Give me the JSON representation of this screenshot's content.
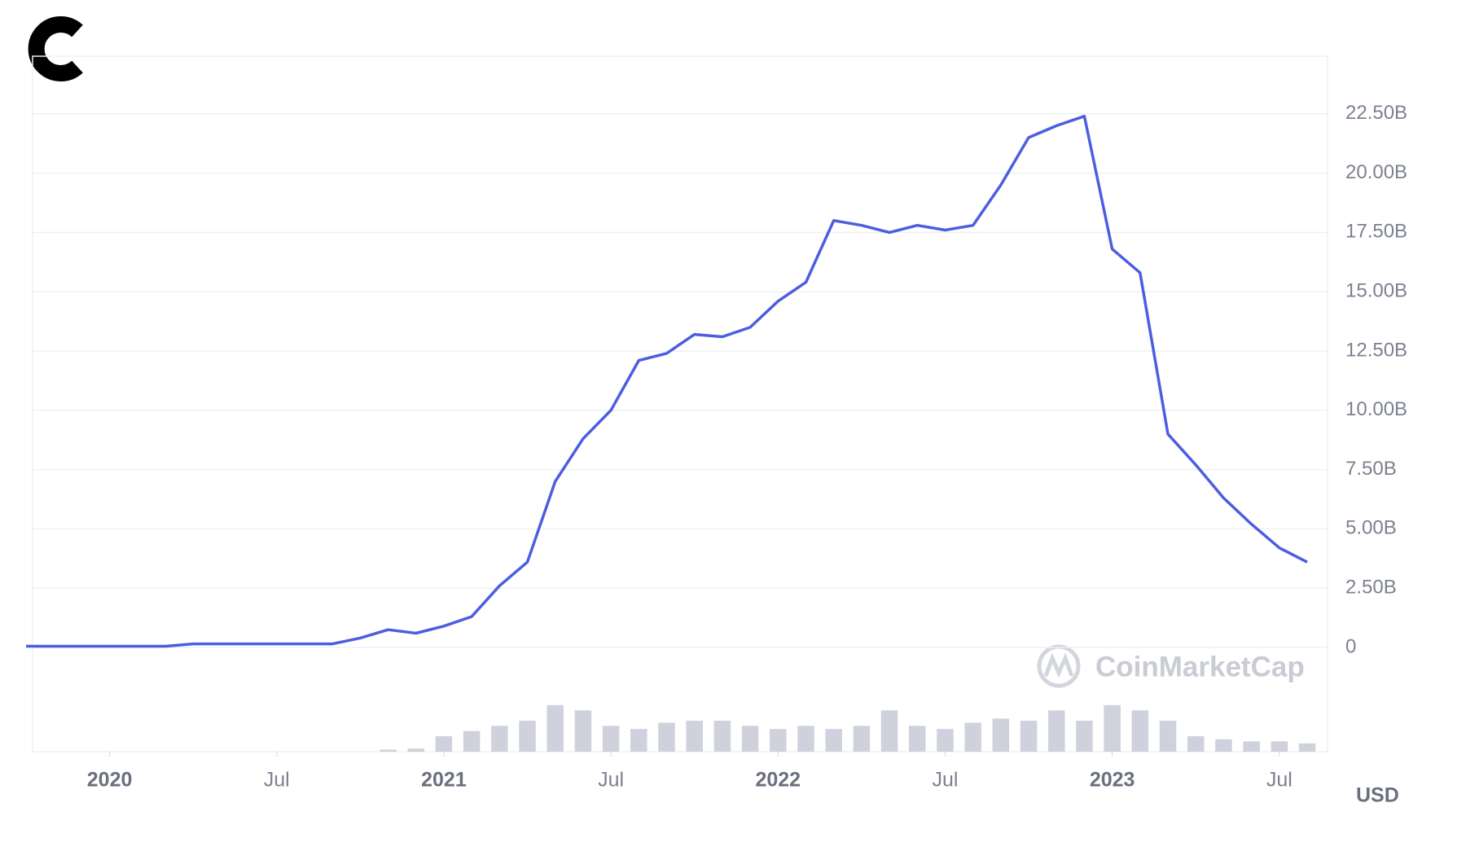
{
  "chart_data": {
    "type": "line",
    "y_label": "USD",
    "watermark": "CoinMarketCap",
    "x": [
      "2019-10",
      "2019-11",
      "2019-12",
      "2020-01",
      "2020-02",
      "2020-03",
      "2020-04",
      "2020-05",
      "2020-06",
      "2020-07",
      "2020-08",
      "2020-09",
      "2020-10",
      "2020-11",
      "2020-12",
      "2021-01",
      "2021-02",
      "2021-03",
      "2021-04",
      "2021-05",
      "2021-06",
      "2021-07",
      "2021-08",
      "2021-09",
      "2021-10",
      "2021-11",
      "2021-12",
      "2022-01",
      "2022-02",
      "2022-03",
      "2022-04",
      "2022-05",
      "2022-06",
      "2022-07",
      "2022-08",
      "2022-09",
      "2022-10",
      "2022-11",
      "2022-12",
      "2023-01",
      "2023-02",
      "2023-03",
      "2023-04",
      "2023-05",
      "2023-06",
      "2023-07",
      "2023-08"
    ],
    "values": [
      0.05,
      0.05,
      0.05,
      0.05,
      0.05,
      0.05,
      0.15,
      0.15,
      0.15,
      0.15,
      0.15,
      0.15,
      0.4,
      0.75,
      0.6,
      0.9,
      1.3,
      2.6,
      3.6,
      7.0,
      8.8,
      10.0,
      12.1,
      12.4,
      13.2,
      13.1,
      13.5,
      14.6,
      15.4,
      18.0,
      17.8,
      17.5,
      17.8,
      17.6,
      17.8,
      19.5,
      21.5,
      22.0,
      22.4,
      16.8,
      15.8,
      9.0,
      7.7,
      6.3,
      5.2,
      4.2,
      3.6
    ],
    "color": "#4c5ee0",
    "volume_values": [
      0,
      0,
      0,
      0,
      0,
      0,
      0,
      0,
      0,
      0,
      0,
      0,
      0,
      2,
      3,
      15,
      20,
      25,
      30,
      45,
      40,
      25,
      22,
      28,
      30,
      30,
      25,
      22,
      25,
      22,
      25,
      40,
      25,
      22,
      28,
      32,
      30,
      40,
      30,
      45,
      40,
      30,
      15,
      12,
      10,
      10,
      8
    ],
    "volume_color": "#cfd2dc",
    "y2lim": [
      0,
      100
    ],
    "xlim": [
      "2019-10",
      "2023-08"
    ],
    "xticks": [
      {
        "value": "2020-01",
        "label": "2020"
      },
      {
        "value": "2020-07",
        "label": "Jul"
      },
      {
        "value": "2021-01",
        "label": "2021"
      },
      {
        "value": "2021-07",
        "label": "Jul"
      },
      {
        "value": "2022-01",
        "label": "2022"
      },
      {
        "value": "2022-07",
        "label": "Jul"
      },
      {
        "value": "2023-01",
        "label": "2023"
      },
      {
        "value": "2023-07",
        "label": "Jul"
      }
    ],
    "ylim": [
      0,
      25
    ],
    "yticks": [
      0,
      {
        "value": 2.5,
        "label": "2.50B"
      },
      {
        "value": 5,
        "label": "5.00B"
      },
      {
        "value": 7.5,
        "label": "7.50B"
      },
      {
        "value": 10,
        "label": "10.00B"
      },
      {
        "value": 12.5,
        "label": "12.50B"
      },
      {
        "value": 15,
        "label": "15.00B"
      },
      {
        "value": 17.5,
        "label": "17.50B"
      },
      {
        "value": 20,
        "label": "20.00B"
      },
      {
        "value": 22.5,
        "label": "22.50B"
      }
    ],
    "grid": true
  }
}
